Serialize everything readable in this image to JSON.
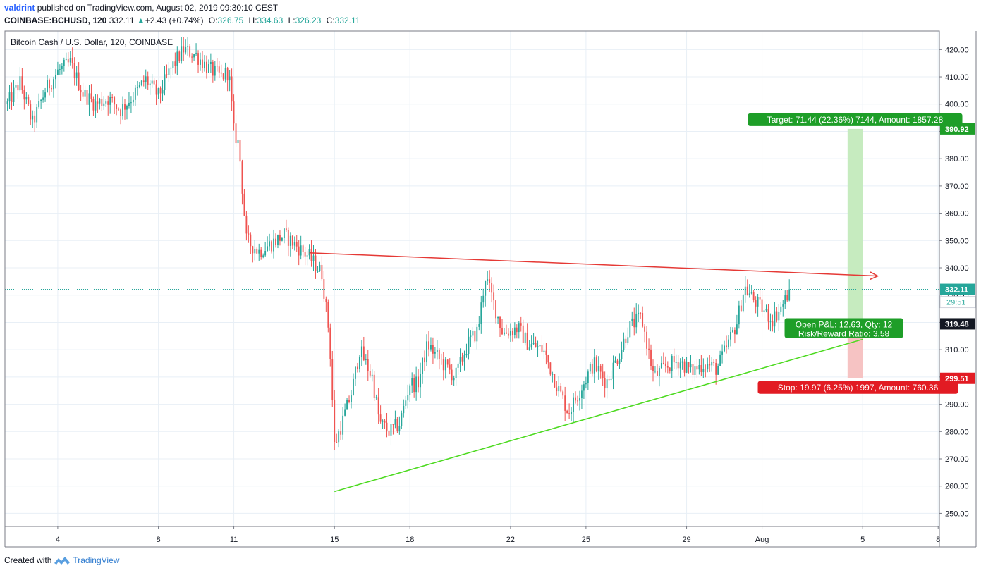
{
  "header": {
    "author": "valdrint",
    "published": "published on TradingView.com, August 02, 2019 09:30:10 CEST",
    "symbol": "COINBASE:BCHUSD, 120",
    "last": "332.11",
    "change": "+2.43 (+0.74%)",
    "open_label": "O:",
    "open": "326.75",
    "high_label": "H:",
    "high": "334.63",
    "low_label": "L:",
    "low": "326.23",
    "close_label": "C:",
    "close": "332.11"
  },
  "footer": {
    "created_with": "Created with",
    "brand": "TradingView"
  },
  "colors": {
    "up": "#26a69a",
    "down": "#ef5350",
    "grid": "#e8eff6",
    "resistance": "#e53935",
    "support": "#4cda1f",
    "target_zone": "#c6ebbf",
    "stop_zone": "#f6c3c3",
    "target_label": "#1e9e28",
    "stop_label": "#e21b23",
    "price_line": "#26a69a"
  },
  "chart_data": {
    "type": "candlestick",
    "series_title": "Bitcoin Cash / U.S. Dollar, 120, COINBASE",
    "x_ticks": [
      {
        "label": "4",
        "day": 4
      },
      {
        "label": "8",
        "day": 8
      },
      {
        "label": "11",
        "day": 11
      },
      {
        "label": "15",
        "day": 15
      },
      {
        "label": "18",
        "day": 18
      },
      {
        "label": "22",
        "day": 22
      },
      {
        "label": "25",
        "day": 25
      },
      {
        "label": "29",
        "day": 29
      },
      {
        "label": "Aug",
        "day": 32
      },
      {
        "label": "5",
        "day": 36
      },
      {
        "label": "8",
        "day": 39
      }
    ],
    "x_range": [
      1.9,
      39.05
    ],
    "y_ticks": [
      250,
      260,
      270,
      280,
      290,
      300,
      310,
      320,
      330,
      340,
      350,
      360,
      370,
      380,
      390,
      400,
      410,
      420
    ],
    "y_tick_labels": [
      "250.00",
      "260.00",
      "270.00",
      "280.00",
      "290.00",
      "300.00",
      "310.00",
      "320.00",
      "330.00",
      "340.00",
      "350.00",
      "360.00",
      "370.00",
      "380.00",
      "390.00",
      "400.00",
      "410.00",
      "420.00"
    ],
    "y_range": [
      245.2,
      426.8
    ],
    "price_path": [
      [
        2.0,
        400
      ],
      [
        2.5,
        408
      ],
      [
        3.0,
        393
      ],
      [
        3.5,
        405
      ],
      [
        4.0,
        412
      ],
      [
        4.5,
        415
      ],
      [
        5.0,
        404
      ],
      [
        5.5,
        400
      ],
      [
        6.0,
        402
      ],
      [
        6.5,
        398
      ],
      [
        7.0,
        403
      ],
      [
        7.5,
        409
      ],
      [
        8.0,
        403
      ],
      [
        8.5,
        413
      ],
      [
        9.0,
        420
      ],
      [
        9.5,
        418
      ],
      [
        10.0,
        413
      ],
      [
        10.5,
        410
      ],
      [
        10.8,
        412
      ],
      [
        11.0,
        390
      ],
      [
        11.2,
        385
      ],
      [
        11.5,
        350
      ],
      [
        12.0,
        346
      ],
      [
        12.5,
        349
      ],
      [
        13.0,
        352
      ],
      [
        13.5,
        348
      ],
      [
        14.0,
        344
      ],
      [
        14.5,
        338
      ],
      [
        14.8,
        315
      ],
      [
        15.0,
        275
      ],
      [
        15.3,
        283
      ],
      [
        15.7,
        295
      ],
      [
        16.0,
        310
      ],
      [
        16.5,
        300
      ],
      [
        16.8,
        283
      ],
      [
        17.2,
        280
      ],
      [
        17.6,
        283
      ],
      [
        18.0,
        298
      ],
      [
        18.3,
        297
      ],
      [
        18.7,
        312
      ],
      [
        19.3,
        305
      ],
      [
        19.8,
        300
      ],
      [
        20.3,
        312
      ],
      [
        20.7,
        317
      ],
      [
        21.0,
        337
      ],
      [
        21.3,
        328
      ],
      [
        21.7,
        316
      ],
      [
        22.3,
        318
      ],
      [
        22.7,
        312
      ],
      [
        23.3,
        310
      ],
      [
        23.8,
        298
      ],
      [
        24.3,
        287
      ],
      [
        24.7,
        294
      ],
      [
        25.3,
        305
      ],
      [
        25.8,
        298
      ],
      [
        26.3,
        308
      ],
      [
        26.7,
        318
      ],
      [
        27.2,
        322
      ],
      [
        27.7,
        300
      ],
      [
        28.2,
        304
      ],
      [
        28.7,
        306
      ],
      [
        29.2,
        302
      ],
      [
        29.7,
        305
      ],
      [
        30.2,
        303
      ],
      [
        30.6,
        311
      ],
      [
        31.0,
        320
      ],
      [
        31.3,
        333
      ],
      [
        31.6,
        329
      ],
      [
        32.0,
        325
      ],
      [
        32.4,
        321
      ],
      [
        32.8,
        326
      ],
      [
        33.1,
        332
      ]
    ],
    "series": [
      {
        "name": "resistance trendline",
        "points": [
          [
            14.0,
            345.5
          ],
          [
            36.6,
            337.0
          ]
        ],
        "arrow": true
      },
      {
        "name": "support trendline",
        "points": [
          [
            15.0,
            258.0
          ],
          [
            36.0,
            313.8
          ]
        ]
      }
    ],
    "last_price": 332.11,
    "countdown": "29:51",
    "position": {
      "entry": 319.48,
      "target": 390.92,
      "stop": 299.51,
      "x_range": [
        35.4,
        36.0
      ],
      "target_label": "Target: 71.44 (22.36%) 7144, Amount: 1857.28",
      "stop_label": "Stop: 19.97 (6.25%) 1997, Amount: 760.36",
      "pnl_label": "Open P&L: 12.63, Qty: 12",
      "rr_label": "Risk/Reward Ratio: 3.58"
    },
    "price_badges": [
      {
        "value": 390.92,
        "label": "390.92",
        "color": "#1e9e28",
        "text_color": "#ffffff"
      },
      {
        "value": 332.11,
        "label": "332.11",
        "color": "#26a69a",
        "text_color": "#ffffff"
      },
      {
        "value": 319.48,
        "label": "319.48",
        "color": "#131722",
        "text_color": "#ffffff"
      },
      {
        "value": 299.51,
        "label": "299.51",
        "color": "#e21b23",
        "text_color": "#ffffff"
      }
    ]
  }
}
